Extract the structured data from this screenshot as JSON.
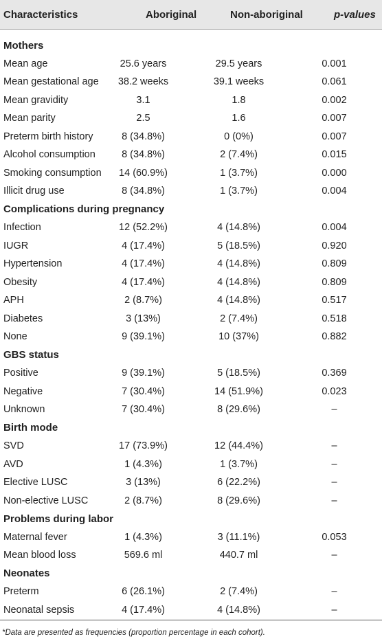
{
  "header": {
    "characteristics": "Characteristics",
    "aboriginal": "Aboriginal",
    "non_aboriginal": "Non-aboriginal",
    "p_values": "p-values"
  },
  "rows": [
    {
      "type": "section",
      "label": "Mothers"
    },
    {
      "label": "Mean age",
      "aboriginal": "25.6 years",
      "non_aboriginal": "29.5 years",
      "p": "0.001"
    },
    {
      "label": "Mean gestational age",
      "aboriginal": "38.2 weeks",
      "non_aboriginal": "39.1 weeks",
      "p": "0.061"
    },
    {
      "label": "Mean gravidity",
      "aboriginal": "3.1",
      "non_aboriginal": "1.8",
      "p": "0.002"
    },
    {
      "label": "Mean parity",
      "aboriginal": "2.5",
      "non_aboriginal": "1.6",
      "p": "0.007"
    },
    {
      "label": "Preterm birth history",
      "aboriginal": "8 (34.8%)",
      "non_aboriginal": "0 (0%)",
      "p": "0.007"
    },
    {
      "label": "Alcohol consumption",
      "aboriginal": "8 (34.8%)",
      "non_aboriginal": "2 (7.4%)",
      "p": "0.015"
    },
    {
      "label": "Smoking consumption",
      "aboriginal": "14 (60.9%)",
      "non_aboriginal": "1 (3.7%)",
      "p": "0.000"
    },
    {
      "label": "Illicit drug use",
      "aboriginal": "8 (34.8%)",
      "non_aboriginal": "1 (3.7%)",
      "p": "0.004"
    },
    {
      "type": "section",
      "label": "Complications during pregnancy"
    },
    {
      "label": "Infection",
      "aboriginal": "12 (52.2%)",
      "non_aboriginal": "4 (14.8%)",
      "p": "0.004"
    },
    {
      "label": "IUGR",
      "aboriginal": "4 (17.4%)",
      "non_aboriginal": "5 (18.5%)",
      "p": "0.920"
    },
    {
      "label": "Hypertension",
      "aboriginal": "4 (17.4%)",
      "non_aboriginal": "4 (14.8%)",
      "p": "0.809"
    },
    {
      "label": "Obesity",
      "aboriginal": "4 (17.4%)",
      "non_aboriginal": "4 (14.8%)",
      "p": "0.809"
    },
    {
      "label": "APH",
      "aboriginal": "2 (8.7%)",
      "non_aboriginal": "4 (14.8%)",
      "p": "0.517"
    },
    {
      "label": "Diabetes",
      "aboriginal": "3 (13%)",
      "non_aboriginal": "2 (7.4%)",
      "p": "0.518"
    },
    {
      "label": "None",
      "aboriginal": "9 (39.1%)",
      "non_aboriginal": "10 (37%)",
      "p": "0.882"
    },
    {
      "type": "section",
      "label": "GBS status"
    },
    {
      "label": "Positive",
      "aboriginal": "9 (39.1%)",
      "non_aboriginal": "5 (18.5%)",
      "p": "0.369"
    },
    {
      "label": "Negative",
      "aboriginal": "7 (30.4%)",
      "non_aboriginal": "14 (51.9%)",
      "p": "0.023"
    },
    {
      "label": "Unknown",
      "aboriginal": "7 (30.4%)",
      "non_aboriginal": "8 (29.6%)",
      "p": "–"
    },
    {
      "type": "section",
      "label": "Birth mode"
    },
    {
      "label": "SVD",
      "aboriginal": "17 (73.9%)",
      "non_aboriginal": "12 (44.4%)",
      "p": "–"
    },
    {
      "label": "AVD",
      "aboriginal": "1 (4.3%)",
      "non_aboriginal": "1 (3.7%)",
      "p": "–"
    },
    {
      "label": "Elective LUSC",
      "aboriginal": "3 (13%)",
      "non_aboriginal": "6 (22.2%)",
      "p": "–"
    },
    {
      "label": "Non-elective LUSC",
      "aboriginal": "2 (8.7%)",
      "non_aboriginal": "8 (29.6%)",
      "p": "–"
    },
    {
      "type": "section",
      "label": "Problems during labor"
    },
    {
      "label": "Maternal fever",
      "aboriginal": "1 (4.3%)",
      "non_aboriginal": "3 (11.1%)",
      "p": "0.053"
    },
    {
      "label": "Mean blood loss",
      "aboriginal": "569.6 ml",
      "non_aboriginal": "440.7 ml",
      "p": "–"
    },
    {
      "type": "section",
      "label": "Neonates"
    },
    {
      "label": "Preterm",
      "aboriginal": "6 (26.1%)",
      "non_aboriginal": "2 (7.4%)",
      "p": "–"
    },
    {
      "label": "Neonatal sepsis",
      "aboriginal": "4 (17.4%)",
      "non_aboriginal": "4 (14.8%)",
      "p": "–"
    }
  ],
  "footnote": "*Data are presented as frequencies (proportion percentage in each cohort)."
}
